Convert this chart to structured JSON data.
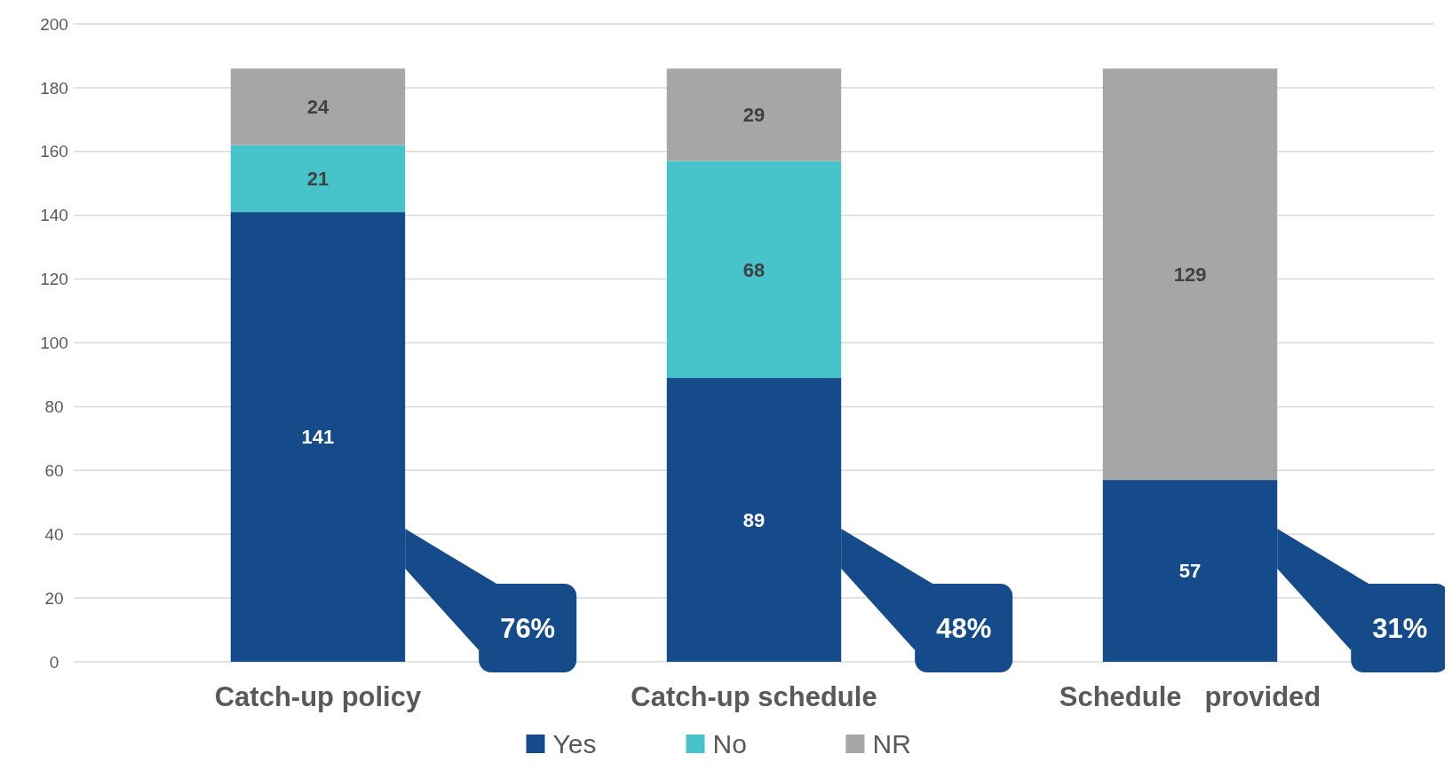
{
  "chart_data": {
    "type": "bar",
    "stacked": true,
    "categories": [
      "Catch-up policy",
      "Catch-up schedule",
      "Schedule   provided"
    ],
    "series": [
      {
        "name": "Yes",
        "color": "#154b8a",
        "values": [
          141,
          89,
          57
        ]
      },
      {
        "name": "No",
        "color": "#47c4ca",
        "values": [
          21,
          68,
          null
        ]
      },
      {
        "name": "NR",
        "color": "#a6a6a6",
        "values": [
          24,
          29,
          129
        ]
      }
    ],
    "ylim": [
      0,
      200
    ],
    "yticks": [
      0,
      20,
      40,
      60,
      80,
      100,
      120,
      140,
      160,
      180,
      200
    ],
    "grid": "y",
    "legend": "bottom",
    "data_labels": true,
    "annotations": [
      "76%",
      "48%",
      "31%"
    ]
  }
}
